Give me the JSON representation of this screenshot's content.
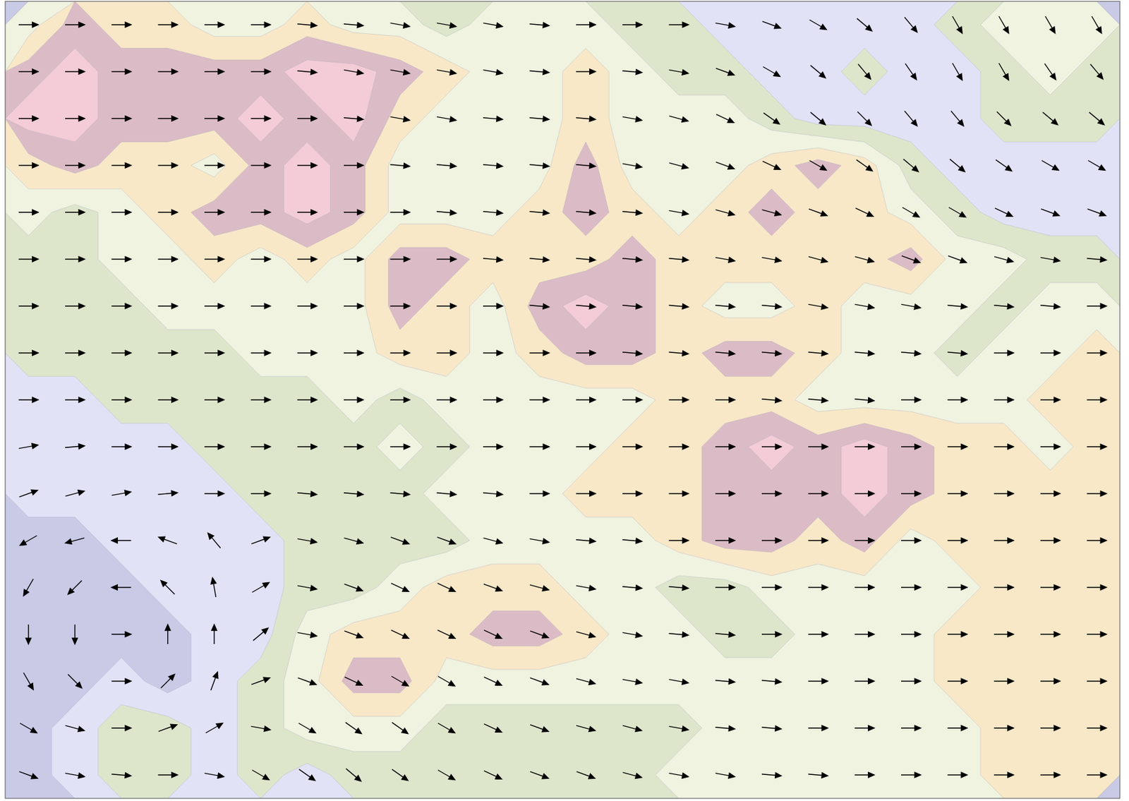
{
  "chart_data": {
    "type": "contour_quiver",
    "thresholds": [
      0.5,
      1.5,
      2.5,
      3.5,
      4.5,
      5.5
    ],
    "colors": [
      "#c9cae6",
      "#e1e2f6",
      "#dde6cb",
      "#eff3e0",
      "#f8e8c8",
      "#dbbcc6",
      "#f3ccd7"
    ],
    "field": [
      [
        3,
        5,
        4,
        4,
        3,
        3,
        4,
        3,
        3,
        2,
        3,
        3,
        3,
        2,
        2,
        1,
        1,
        1,
        1,
        1,
        2,
        3,
        3,
        3
      ],
      [
        5,
        6,
        5,
        5,
        5,
        5,
        6,
        6,
        5,
        4,
        3,
        3,
        4,
        3,
        2,
        2,
        1,
        1,
        2,
        1,
        1,
        2,
        3,
        2
      ],
      [
        6,
        6,
        5,
        5,
        5,
        6,
        5,
        6,
        4,
        3,
        3,
        3,
        4,
        3,
        3,
        3,
        2,
        1,
        1,
        1,
        1,
        2,
        2,
        2
      ],
      [
        4,
        5,
        4,
        4,
        3,
        5,
        6,
        5,
        3,
        3,
        3,
        3,
        5,
        3,
        3,
        3,
        4,
        5,
        4,
        2,
        1,
        1,
        1,
        1
      ],
      [
        3,
        2,
        3,
        4,
        5,
        5,
        6,
        5,
        3,
        3,
        3,
        4,
        5,
        4,
        3,
        4,
        5,
        4,
        4,
        3,
        2,
        1,
        1,
        1
      ],
      [
        2,
        2,
        3,
        3,
        4,
        3,
        4,
        3,
        5,
        5,
        4,
        4,
        4,
        5,
        4,
        4,
        4,
        4,
        4,
        5,
        3,
        3,
        2,
        2
      ],
      [
        2,
        2,
        2,
        3,
        3,
        3,
        3,
        3,
        5,
        4,
        3,
        5,
        6,
        5,
        4,
        3,
        3,
        4,
        3,
        3,
        3,
        2,
        3,
        3
      ],
      [
        2,
        2,
        2,
        2,
        2,
        3,
        3,
        3,
        4,
        4,
        3,
        4,
        5,
        5,
        4,
        5,
        5,
        4,
        3,
        3,
        2,
        3,
        3,
        4
      ],
      [
        1,
        1,
        2,
        2,
        2,
        2,
        2,
        3,
        2,
        3,
        3,
        3,
        3,
        3,
        4,
        4,
        4,
        3,
        3,
        3,
        3,
        3,
        4,
        4
      ],
      [
        1,
        1,
        1,
        1,
        2,
        2,
        2,
        2,
        3,
        2,
        3,
        3,
        3,
        4,
        4,
        5,
        6,
        5,
        6,
        5,
        4,
        4,
        3,
        4
      ],
      [
        1,
        1,
        1,
        1,
        1,
        2,
        2,
        2,
        2,
        3,
        3,
        3,
        4,
        4,
        4,
        5,
        5,
        5,
        6,
        5,
        4,
        4,
        4,
        4
      ],
      [
        0,
        0,
        1,
        1,
        1,
        1,
        2,
        2,
        2,
        2,
        3,
        3,
        3,
        3,
        4,
        5,
        5,
        4,
        5,
        3,
        4,
        4,
        4,
        4
      ],
      [
        0,
        0,
        0,
        1,
        1,
        1,
        2,
        2,
        3,
        4,
        4,
        4,
        3,
        3,
        2,
        2,
        3,
        3,
        3,
        3,
        3,
        4,
        4,
        4
      ],
      [
        0,
        0,
        0,
        0,
        1,
        1,
        3,
        4,
        4,
        4,
        5,
        5,
        4,
        3,
        3,
        2,
        2,
        3,
        3,
        3,
        4,
        4,
        4,
        4
      ],
      [
        0,
        0,
        1,
        0,
        1,
        2,
        3,
        5,
        5,
        3,
        3,
        3,
        3,
        3,
        3,
        3,
        3,
        3,
        3,
        3,
        4,
        4,
        4,
        4
      ],
      [
        0,
        1,
        2,
        2,
        1,
        2,
        3,
        3,
        3,
        2,
        2,
        2,
        2,
        2,
        2,
        3,
        3,
        3,
        3,
        3,
        3,
        4,
        4,
        4
      ],
      [
        0,
        1,
        2,
        2,
        1,
        2,
        1,
        2,
        2,
        2,
        2,
        2,
        2,
        2,
        3,
        3,
        3,
        3,
        3,
        3,
        3,
        4,
        4,
        4
      ]
    ],
    "wind_direction": [
      [
        0,
        0,
        0,
        0,
        0,
        0,
        5,
        5,
        10,
        10,
        10,
        5,
        0,
        0,
        0,
        10,
        20,
        30,
        40,
        50,
        60,
        60,
        60,
        60
      ],
      [
        0,
        0,
        0,
        0,
        0,
        0,
        5,
        10,
        10,
        10,
        10,
        5,
        0,
        5,
        10,
        20,
        30,
        40,
        50,
        55,
        60,
        60,
        55,
        50
      ],
      [
        0,
        0,
        0,
        0,
        0,
        0,
        0,
        5,
        10,
        10,
        5,
        5,
        5,
        10,
        15,
        25,
        35,
        40,
        45,
        50,
        50,
        45,
        40,
        40
      ],
      [
        0,
        0,
        0,
        0,
        0,
        0,
        0,
        0,
        5,
        5,
        5,
        5,
        5,
        10,
        15,
        20,
        25,
        30,
        35,
        40,
        40,
        35,
        30,
        30
      ],
      [
        0,
        0,
        0,
        0,
        0,
        0,
        0,
        0,
        0,
        5,
        5,
        5,
        5,
        5,
        10,
        15,
        15,
        20,
        25,
        30,
        30,
        25,
        20,
        20
      ],
      [
        0,
        0,
        0,
        0,
        0,
        0,
        0,
        0,
        0,
        0,
        5,
        5,
        5,
        5,
        5,
        10,
        10,
        15,
        15,
        20,
        20,
        15,
        10,
        5
      ],
      [
        0,
        0,
        0,
        0,
        0,
        0,
        0,
        0,
        0,
        0,
        0,
        5,
        5,
        5,
        5,
        5,
        5,
        10,
        10,
        10,
        5,
        5,
        5,
        0
      ],
      [
        0,
        0,
        0,
        0,
        0,
        0,
        0,
        0,
        0,
        0,
        0,
        0,
        0,
        5,
        5,
        5,
        5,
        5,
        5,
        5,
        5,
        0,
        0,
        0
      ],
      [
        0,
        0,
        0,
        0,
        0,
        0,
        0,
        0,
        0,
        0,
        0,
        0,
        0,
        0,
        0,
        0,
        5,
        5,
        5,
        0,
        0,
        0,
        0,
        0
      ],
      [
        -10,
        -5,
        0,
        0,
        0,
        0,
        0,
        0,
        0,
        0,
        0,
        0,
        0,
        0,
        0,
        0,
        0,
        0,
        0,
        0,
        0,
        0,
        0,
        0
      ],
      [
        -20,
        -15,
        -10,
        -5,
        0,
        0,
        5,
        5,
        5,
        5,
        5,
        0,
        0,
        0,
        0,
        0,
        0,
        0,
        0,
        0,
        0,
        0,
        0,
        0
      ],
      [
        150,
        165,
        180,
        -160,
        -130,
        -20,
        10,
        15,
        20,
        20,
        15,
        10,
        5,
        5,
        0,
        0,
        0,
        0,
        0,
        0,
        0,
        0,
        0,
        0
      ],
      [
        120,
        135,
        180,
        -135,
        -100,
        -30,
        10,
        20,
        25,
        25,
        20,
        15,
        10,
        5,
        5,
        0,
        0,
        0,
        0,
        0,
        0,
        0,
        0,
        0
      ],
      [
        90,
        90,
        0,
        -90,
        -90,
        -40,
        10,
        20,
        25,
        25,
        25,
        20,
        15,
        10,
        5,
        5,
        0,
        0,
        0,
        0,
        0,
        0,
        0,
        0
      ],
      [
        60,
        45,
        0,
        -45,
        -70,
        -20,
        20,
        25,
        30,
        30,
        25,
        20,
        15,
        10,
        10,
        5,
        5,
        0,
        0,
        0,
        0,
        0,
        0,
        0
      ],
      [
        30,
        15,
        0,
        -20,
        -30,
        10,
        30,
        35,
        35,
        30,
        25,
        20,
        15,
        15,
        10,
        5,
        5,
        0,
        0,
        0,
        0,
        0,
        0,
        0
      ],
      [
        20,
        10,
        5,
        0,
        10,
        30,
        35,
        40,
        35,
        30,
        25,
        20,
        20,
        15,
        10,
        10,
        5,
        5,
        0,
        0,
        0,
        0,
        0,
        0
      ]
    ]
  }
}
